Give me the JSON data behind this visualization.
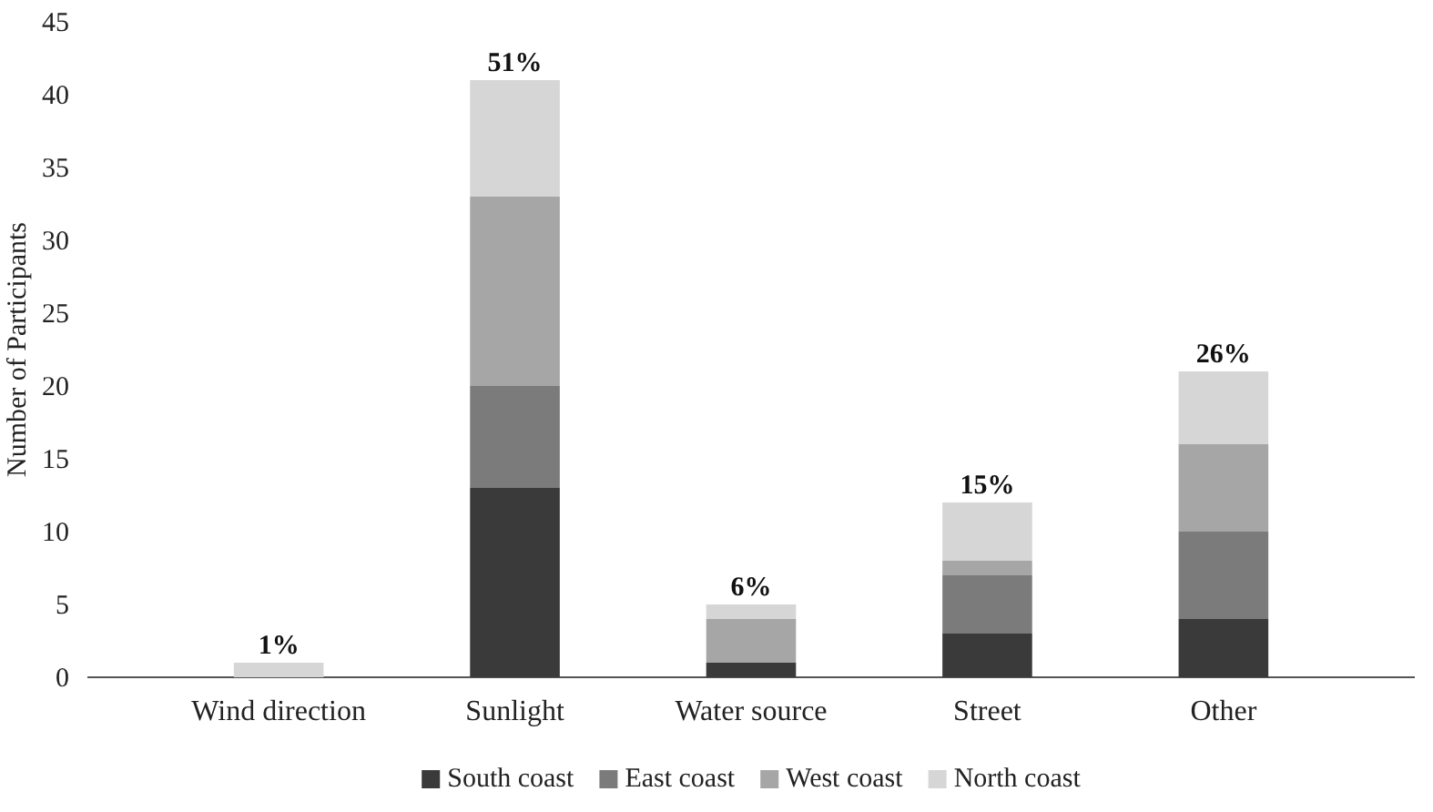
{
  "chart_data": {
    "type": "bar",
    "stacked": true,
    "ylabel": "Number of Participants",
    "categories": [
      "Wind direction",
      "Sunlight",
      "Water source",
      "Street",
      "Other"
    ],
    "series": [
      {
        "name": "South coast",
        "color": "#3a3a3a",
        "values": [
          0,
          13,
          1,
          3,
          4
        ]
      },
      {
        "name": "East coast",
        "color": "#7b7b7b",
        "values": [
          0,
          7,
          0,
          4,
          6
        ]
      },
      {
        "name": "West coast",
        "color": "#a6a6a6",
        "values": [
          0,
          13,
          3,
          1,
          6
        ]
      },
      {
        "name": "North coast",
        "color": "#d6d6d6",
        "values": [
          1,
          8,
          1,
          4,
          5
        ]
      }
    ],
    "annotations": [
      {
        "text": "1%",
        "x": "Wind direction",
        "y": 1
      },
      {
        "text": "51%",
        "x": "Sunlight",
        "y": 41
      },
      {
        "text": "6%",
        "x": "Water source",
        "y": 5
      },
      {
        "text": "15%",
        "x": "Street",
        "y": 12
      },
      {
        "text": "26%",
        "x": "Other",
        "y": 21
      }
    ],
    "ylim": [
      0,
      45
    ],
    "yticks": [
      0,
      5,
      10,
      15,
      20,
      25,
      30,
      35,
      40,
      45
    ],
    "grid": false,
    "legend": "bottom"
  }
}
